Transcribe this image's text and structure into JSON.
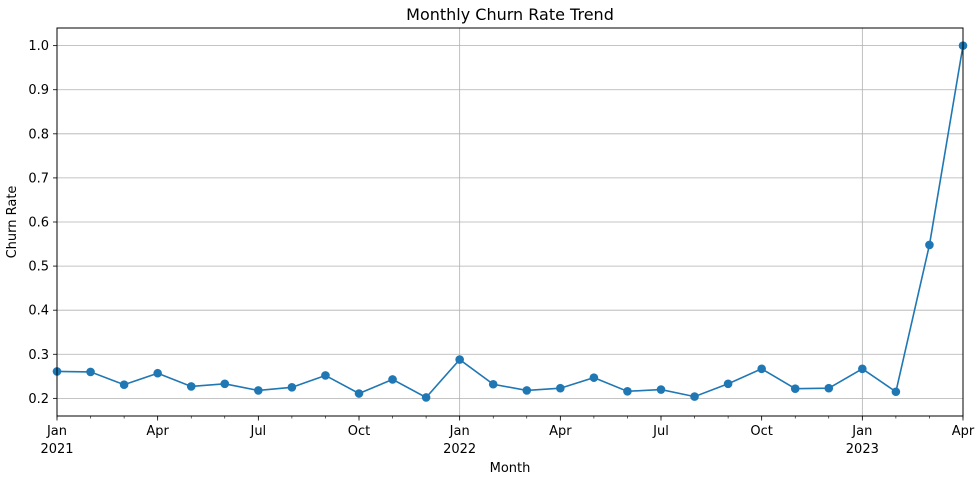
{
  "chart_data": {
    "type": "line",
    "title": "Monthly Churn Rate Trend",
    "xlabel": "Month",
    "ylabel": "Churn Rate",
    "x": [
      "2021-01",
      "2021-02",
      "2021-03",
      "2021-04",
      "2021-05",
      "2021-06",
      "2021-07",
      "2021-08",
      "2021-09",
      "2021-10",
      "2021-11",
      "2021-12",
      "2022-01",
      "2022-02",
      "2022-03",
      "2022-04",
      "2022-05",
      "2022-06",
      "2022-07",
      "2022-08",
      "2022-09",
      "2022-10",
      "2022-11",
      "2022-12",
      "2023-01",
      "2023-02",
      "2023-03",
      "2023-04"
    ],
    "series": [
      {
        "values": [
          0.261,
          0.26,
          0.231,
          0.257,
          0.227,
          0.233,
          0.218,
          0.225,
          0.252,
          0.211,
          0.243,
          0.202,
          0.288,
          0.232,
          0.218,
          0.223,
          0.247,
          0.216,
          0.22,
          0.204,
          0.233,
          0.267,
          0.222,
          0.223,
          0.267,
          0.215,
          0.548,
          1.0
        ],
        "color": "#1f77b4"
      }
    ],
    "ylim": [
      0.16,
      1.04
    ],
    "yticks": [
      "0.2",
      "0.3",
      "0.4",
      "0.5",
      "0.6",
      "0.7",
      "0.8",
      "0.9",
      "1.0"
    ],
    "yticks_values": [
      0.2,
      0.3,
      0.4,
      0.5,
      0.6,
      0.7,
      0.8,
      0.9,
      1.0
    ],
    "xticks": [
      {
        "month": "2021-01",
        "label": "Jan",
        "year": "2021"
      },
      {
        "month": "2021-04",
        "label": "Apr",
        "year": ""
      },
      {
        "month": "2021-07",
        "label": "Jul",
        "year": ""
      },
      {
        "month": "2021-10",
        "label": "Oct",
        "year": ""
      },
      {
        "month": "2022-01",
        "label": "Jan",
        "year": "2022"
      },
      {
        "month": "2022-04",
        "label": "Apr",
        "year": ""
      },
      {
        "month": "2022-07",
        "label": "Jul",
        "year": ""
      },
      {
        "month": "2022-10",
        "label": "Oct",
        "year": ""
      },
      {
        "month": "2023-01",
        "label": "Jan",
        "year": "2023"
      },
      {
        "month": "2023-04",
        "label": "Apr",
        "year": ""
      }
    ],
    "grid": true,
    "grid_major_x": [
      "2022-01",
      "2023-01"
    ]
  }
}
